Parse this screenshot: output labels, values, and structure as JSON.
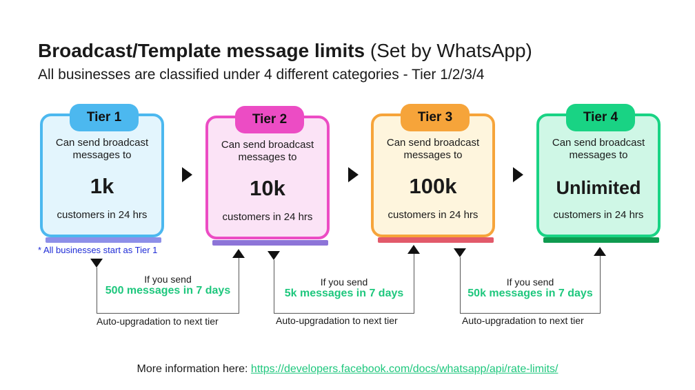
{
  "title": {
    "bold": "Broadcast/Template message limits",
    "light": "(Set by WhatsApp)"
  },
  "subtitle": "All businesses are classified under 4 different categories - Tier 1/2/3/4",
  "tiers": [
    {
      "label": "Tier 1",
      "desc": "Can send broadcast messages to",
      "limit": "1k",
      "per": "customers in 24 hrs",
      "color": "#4cb8ef",
      "bg": "#e3f5fd",
      "shadow": "#8d8fe8"
    },
    {
      "label": "Tier 2",
      "desc": "Can send broadcast messages to",
      "limit": "10k",
      "per": "customers in 24 hrs",
      "color": "#ec4cc4",
      "bg": "#fbe3f6",
      "shadow": "#8d74d8"
    },
    {
      "label": "Tier 3",
      "desc": "Can send broadcast messages to",
      "limit": "100k",
      "per": "customers in 24 hrs",
      "color": "#f6a43a",
      "bg": "#fef5dd",
      "shadow": "#e25a6a"
    },
    {
      "label": "Tier 4",
      "desc": "Can send broadcast messages to",
      "limit": "Unlimited",
      "per": "customers in 24 hrs",
      "color": "#19d384",
      "bg": "#cff7e6",
      "shadow": "#0f9b50"
    }
  ],
  "note": "* All businesses start as Tier 1",
  "upgrades": [
    {
      "if": "If you send",
      "messages": "500 messages in 7 days",
      "auto": "Auto-upgradation to next tier"
    },
    {
      "if": "If you send",
      "messages": "5k messages in 7 days",
      "auto": "Auto-upgradation to next tier"
    },
    {
      "if": "If you send",
      "messages": "50k messages in 7 days",
      "auto": "Auto-upgradation to next tier"
    }
  ],
  "footer": {
    "label": "More information here:",
    "link": "https://developers.facebook.com/docs/whatsapp/api/rate-limits/"
  }
}
